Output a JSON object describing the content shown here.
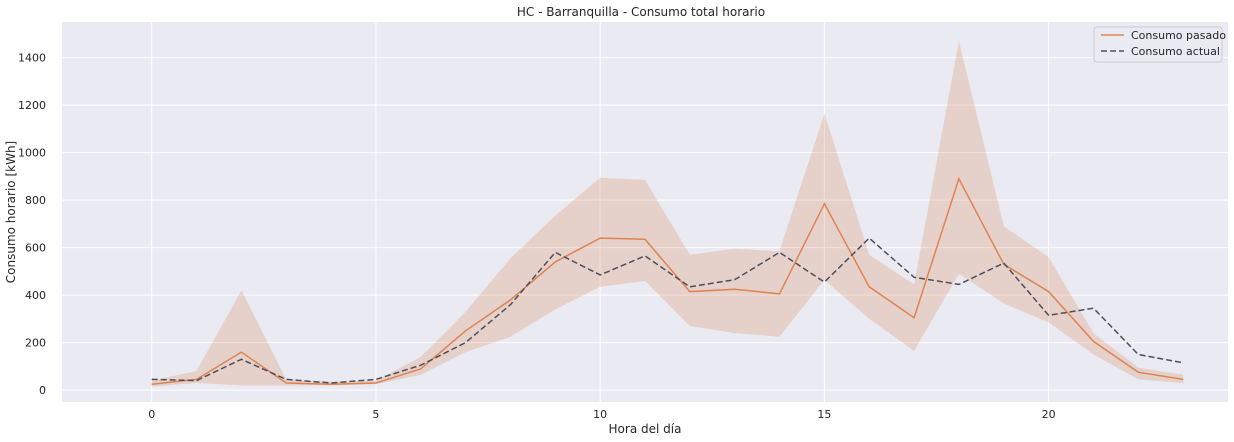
{
  "chart_data": {
    "type": "line",
    "title": "HC - Barranquilla - Consumo total horario",
    "xlabel": "Hora del día",
    "ylabel": "Consumo horario [kWh]",
    "xlim": [
      -2,
      24
    ],
    "ylim": [
      -50,
      1550
    ],
    "xticks": [
      0,
      5,
      10,
      15,
      20
    ],
    "yticks": [
      0,
      200,
      400,
      600,
      800,
      1000,
      1200,
      1400
    ],
    "grid": true,
    "legend_position": "top-right",
    "x": [
      0,
      1,
      2,
      3,
      4,
      5,
      6,
      7,
      8,
      9,
      10,
      11,
      12,
      13,
      14,
      15,
      16,
      17,
      18,
      19,
      20,
      21,
      22,
      23
    ],
    "series": [
      {
        "name": "Consumo pasado",
        "color": "#dd8452",
        "line_style": "solid",
        "values": [
          25,
          45,
          160,
          30,
          25,
          30,
          90,
          250,
          380,
          540,
          640,
          635,
          415,
          425,
          405,
          785,
          435,
          305,
          890,
          530,
          415,
          205,
          75,
          45
        ],
        "band_low": [
          15,
          30,
          20,
          20,
          20,
          25,
          65,
          160,
          225,
          340,
          435,
          460,
          270,
          240,
          225,
          465,
          300,
          165,
          490,
          365,
          285,
          150,
          45,
          30
        ],
        "band_high": [
          40,
          80,
          420,
          45,
          35,
          40,
          140,
          330,
          555,
          735,
          895,
          885,
          570,
          595,
          585,
          1165,
          570,
          445,
          1470,
          690,
          560,
          240,
          95,
          65
        ]
      },
      {
        "name": "Consumo actual",
        "color": "#4c4f5a",
        "line_style": "dashed",
        "values": [
          45,
          40,
          130,
          45,
          30,
          45,
          105,
          200,
          360,
          580,
          485,
          565,
          435,
          465,
          580,
          455,
          640,
          475,
          445,
          535,
          315,
          345,
          150,
          115
        ]
      }
    ]
  }
}
